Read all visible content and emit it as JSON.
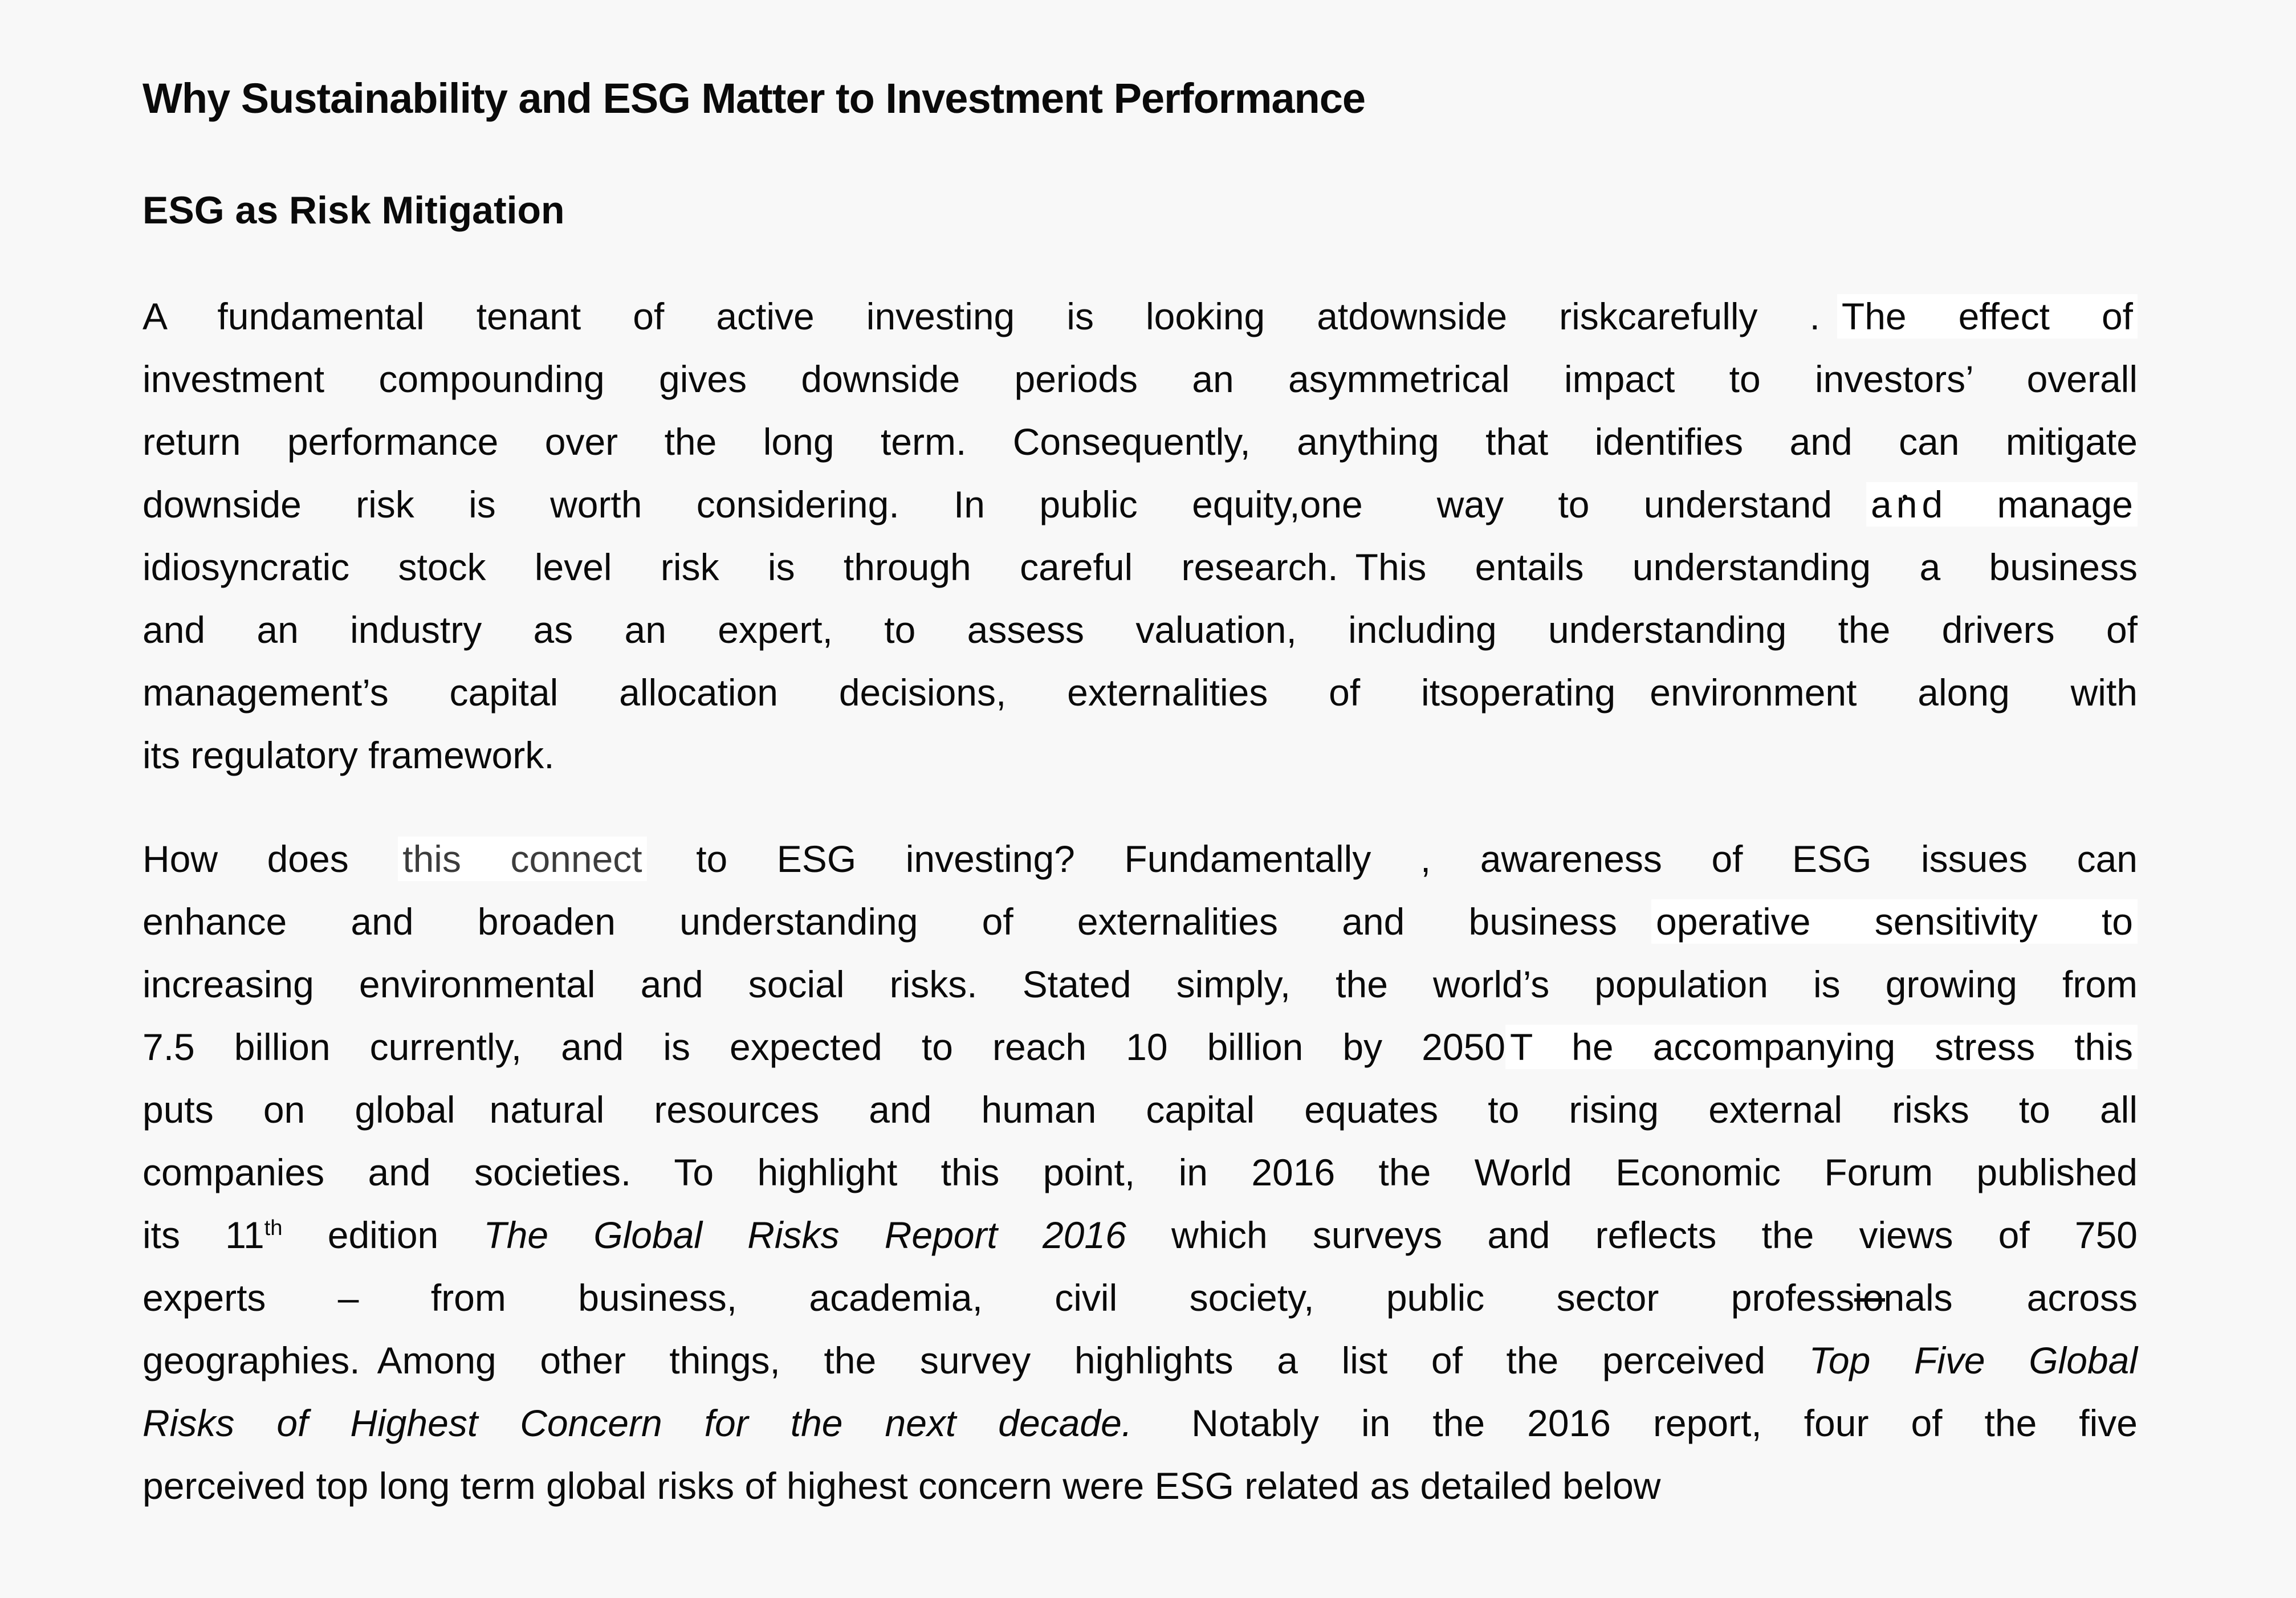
{
  "styles": {
    "page_bg": "#f8f8f8",
    "patch_bg": "#ffffff",
    "text_color": "#0a0a0a",
    "grey_text_color": "#3d3d3d"
  },
  "document": {
    "title": "Why Sustainability and ESG Matter to Investment Performance",
    "heading": "ESG as Risk Mitigation",
    "paragraphs": [
      {
        "lines": [
          [
            {
              "t": "A fundamental tenant of active investing is looking atdownside riskcarefully ."
            },
            {
              "s": "sp2"
            },
            {
              "t": "The effect of",
              "s": "p"
            }
          ],
          [
            {
              "t": "investment compounding gives downside periods an asymmetrical impact to investors’ overall"
            }
          ],
          [
            {
              "t": "return performance over the long term. Consequently, anything that identifies and can mitigate"
            }
          ],
          [
            {
              "t": "downside risk is worth considering. In public equity,one"
            },
            {
              "s": "gap"
            },
            {
              "t": "way to understand"
            },
            {
              "s": "gaps"
            },
            {
              "t": "a",
              "s": "p"
            },
            {
              "t": "n",
              "s": "pd"
            },
            {
              "t": "d manage",
              "s": "p"
            }
          ],
          [
            {
              "t": "idiosyncratic stock level risk is through careful research."
            },
            {
              "s": "sp2"
            },
            {
              "t": "This entails understanding a business"
            }
          ],
          [
            {
              "t": "and an industry as an expert, to assess valuation, including understanding the drivers of"
            }
          ],
          [
            {
              "t": "management’s capital allocation decisions, externalities of itsoperating"
            },
            {
              "s": "gaps"
            },
            {
              "t": "environment along with"
            }
          ],
          [
            {
              "t": "its regulatory framework."
            }
          ]
        ]
      },
      {
        "lines": [
          [
            {
              "t": "How does "
            },
            {
              "t": "this connect",
              "s": "g"
            },
            {
              "t": " to ESG investing? Fundamentally , awareness of ESG issues can"
            }
          ],
          [
            {
              "t": "enhance and broaden understanding of externalities and business"
            },
            {
              "s": "gaps"
            },
            {
              "t": "operative sensitivity to",
              "s": "p"
            }
          ],
          [
            {
              "t": "increasing environmental and social risks. Stated simply, the world’s population is growing from"
            }
          ],
          [
            {
              "t": "7.5 billion currently, and is expected to reach 10 billion by 2050"
            },
            {
              "t": "T he accompanying stress this",
              "s": "p"
            }
          ],
          [
            {
              "t": "puts on global"
            },
            {
              "s": "gaps"
            },
            {
              "t": "natural resources and human capital equates to rising external risks to all"
            }
          ],
          [
            {
              "t": "companies and societies. To highlight this point, in 2016 the World Economic Forum published"
            }
          ],
          [
            {
              "t": "its 11"
            },
            {
              "t": "th",
              "s": "sup"
            },
            {
              "t": " edition "
            },
            {
              "t": "The Global Risks Report 2016",
              "s": "i"
            },
            {
              "t": " which surveys and reflects the views of 750"
            }
          ],
          [
            {
              "t": "experts – from business, academia, civil society, public sector profess"
            },
            {
              "t": "io",
              "s": "hy"
            },
            {
              "t": "nals"
            },
            {
              "s": "gap"
            },
            {
              "t": "across"
            }
          ],
          [
            {
              "t": "geographies."
            },
            {
              "s": "sp2"
            },
            {
              "t": "Among other things, the survey highlights a list of the perceived "
            },
            {
              "t": "Top Five Global",
              "s": "i"
            }
          ],
          [
            {
              "t": "Risks of Highest Concern for the next decade.",
              "s": "i"
            },
            {
              "s": "sp2"
            },
            {
              "t": " Notably in the 2016 report, four of the five"
            }
          ],
          [
            {
              "t": "perceived top long term global risks of highest concern were ESG related as detailed below"
            }
          ]
        ]
      }
    ]
  }
}
